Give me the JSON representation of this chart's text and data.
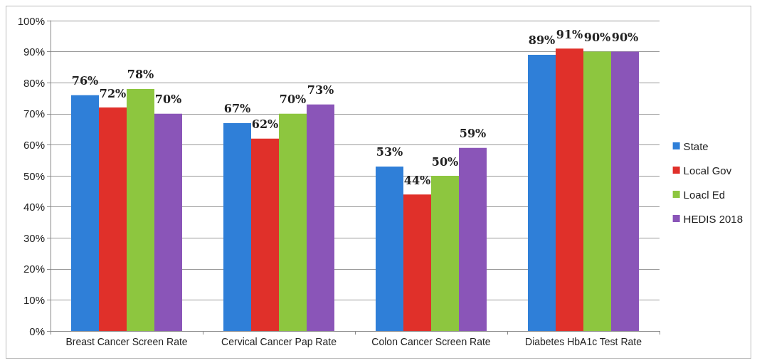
{
  "chart_data": {
    "type": "bar",
    "categories": [
      "Breast Cancer Screen Rate",
      "Cervical Cancer Pap Rate",
      "Colon Cancer Screen Rate",
      "Diabetes HbA1c Test Rate"
    ],
    "series": [
      {
        "name": "State",
        "color": "#2f7fd8",
        "values": [
          76,
          67,
          53,
          89
        ],
        "value_labels": [
          "76%",
          "67%",
          "53%",
          "89%"
        ]
      },
      {
        "name": "Local Gov",
        "color": "#e0302a",
        "values": [
          72,
          62,
          44,
          91
        ],
        "value_labels": [
          "72%",
          "62%",
          "44%",
          "91%"
        ]
      },
      {
        "name": "Loacl Ed",
        "color": "#8dc63f",
        "values": [
          78,
          70,
          50,
          90
        ],
        "value_labels": [
          "78%",
          "70%",
          "50%",
          "90%"
        ]
      },
      {
        "name": "HEDIS 2018",
        "color": "#8a55b8",
        "values": [
          70,
          73,
          59,
          90
        ],
        "value_labels": [
          "70%",
          "73%",
          "59%",
          "90%"
        ]
      }
    ],
    "ylim": [
      0,
      100
    ],
    "yticks": [
      {
        "value": 0,
        "label": "0%"
      },
      {
        "value": 10,
        "label": "10%"
      },
      {
        "value": 20,
        "label": "20%"
      },
      {
        "value": 30,
        "label": "30%"
      },
      {
        "value": 40,
        "label": "40%"
      },
      {
        "value": 50,
        "label": "50%"
      },
      {
        "value": 60,
        "label": "60%"
      },
      {
        "value": 70,
        "label": "70%"
      },
      {
        "value": 80,
        "label": "80%"
      },
      {
        "value": 90,
        "label": "90%"
      },
      {
        "value": 100,
        "label": "100%"
      }
    ],
    "grid": "y",
    "legend": "right"
  }
}
